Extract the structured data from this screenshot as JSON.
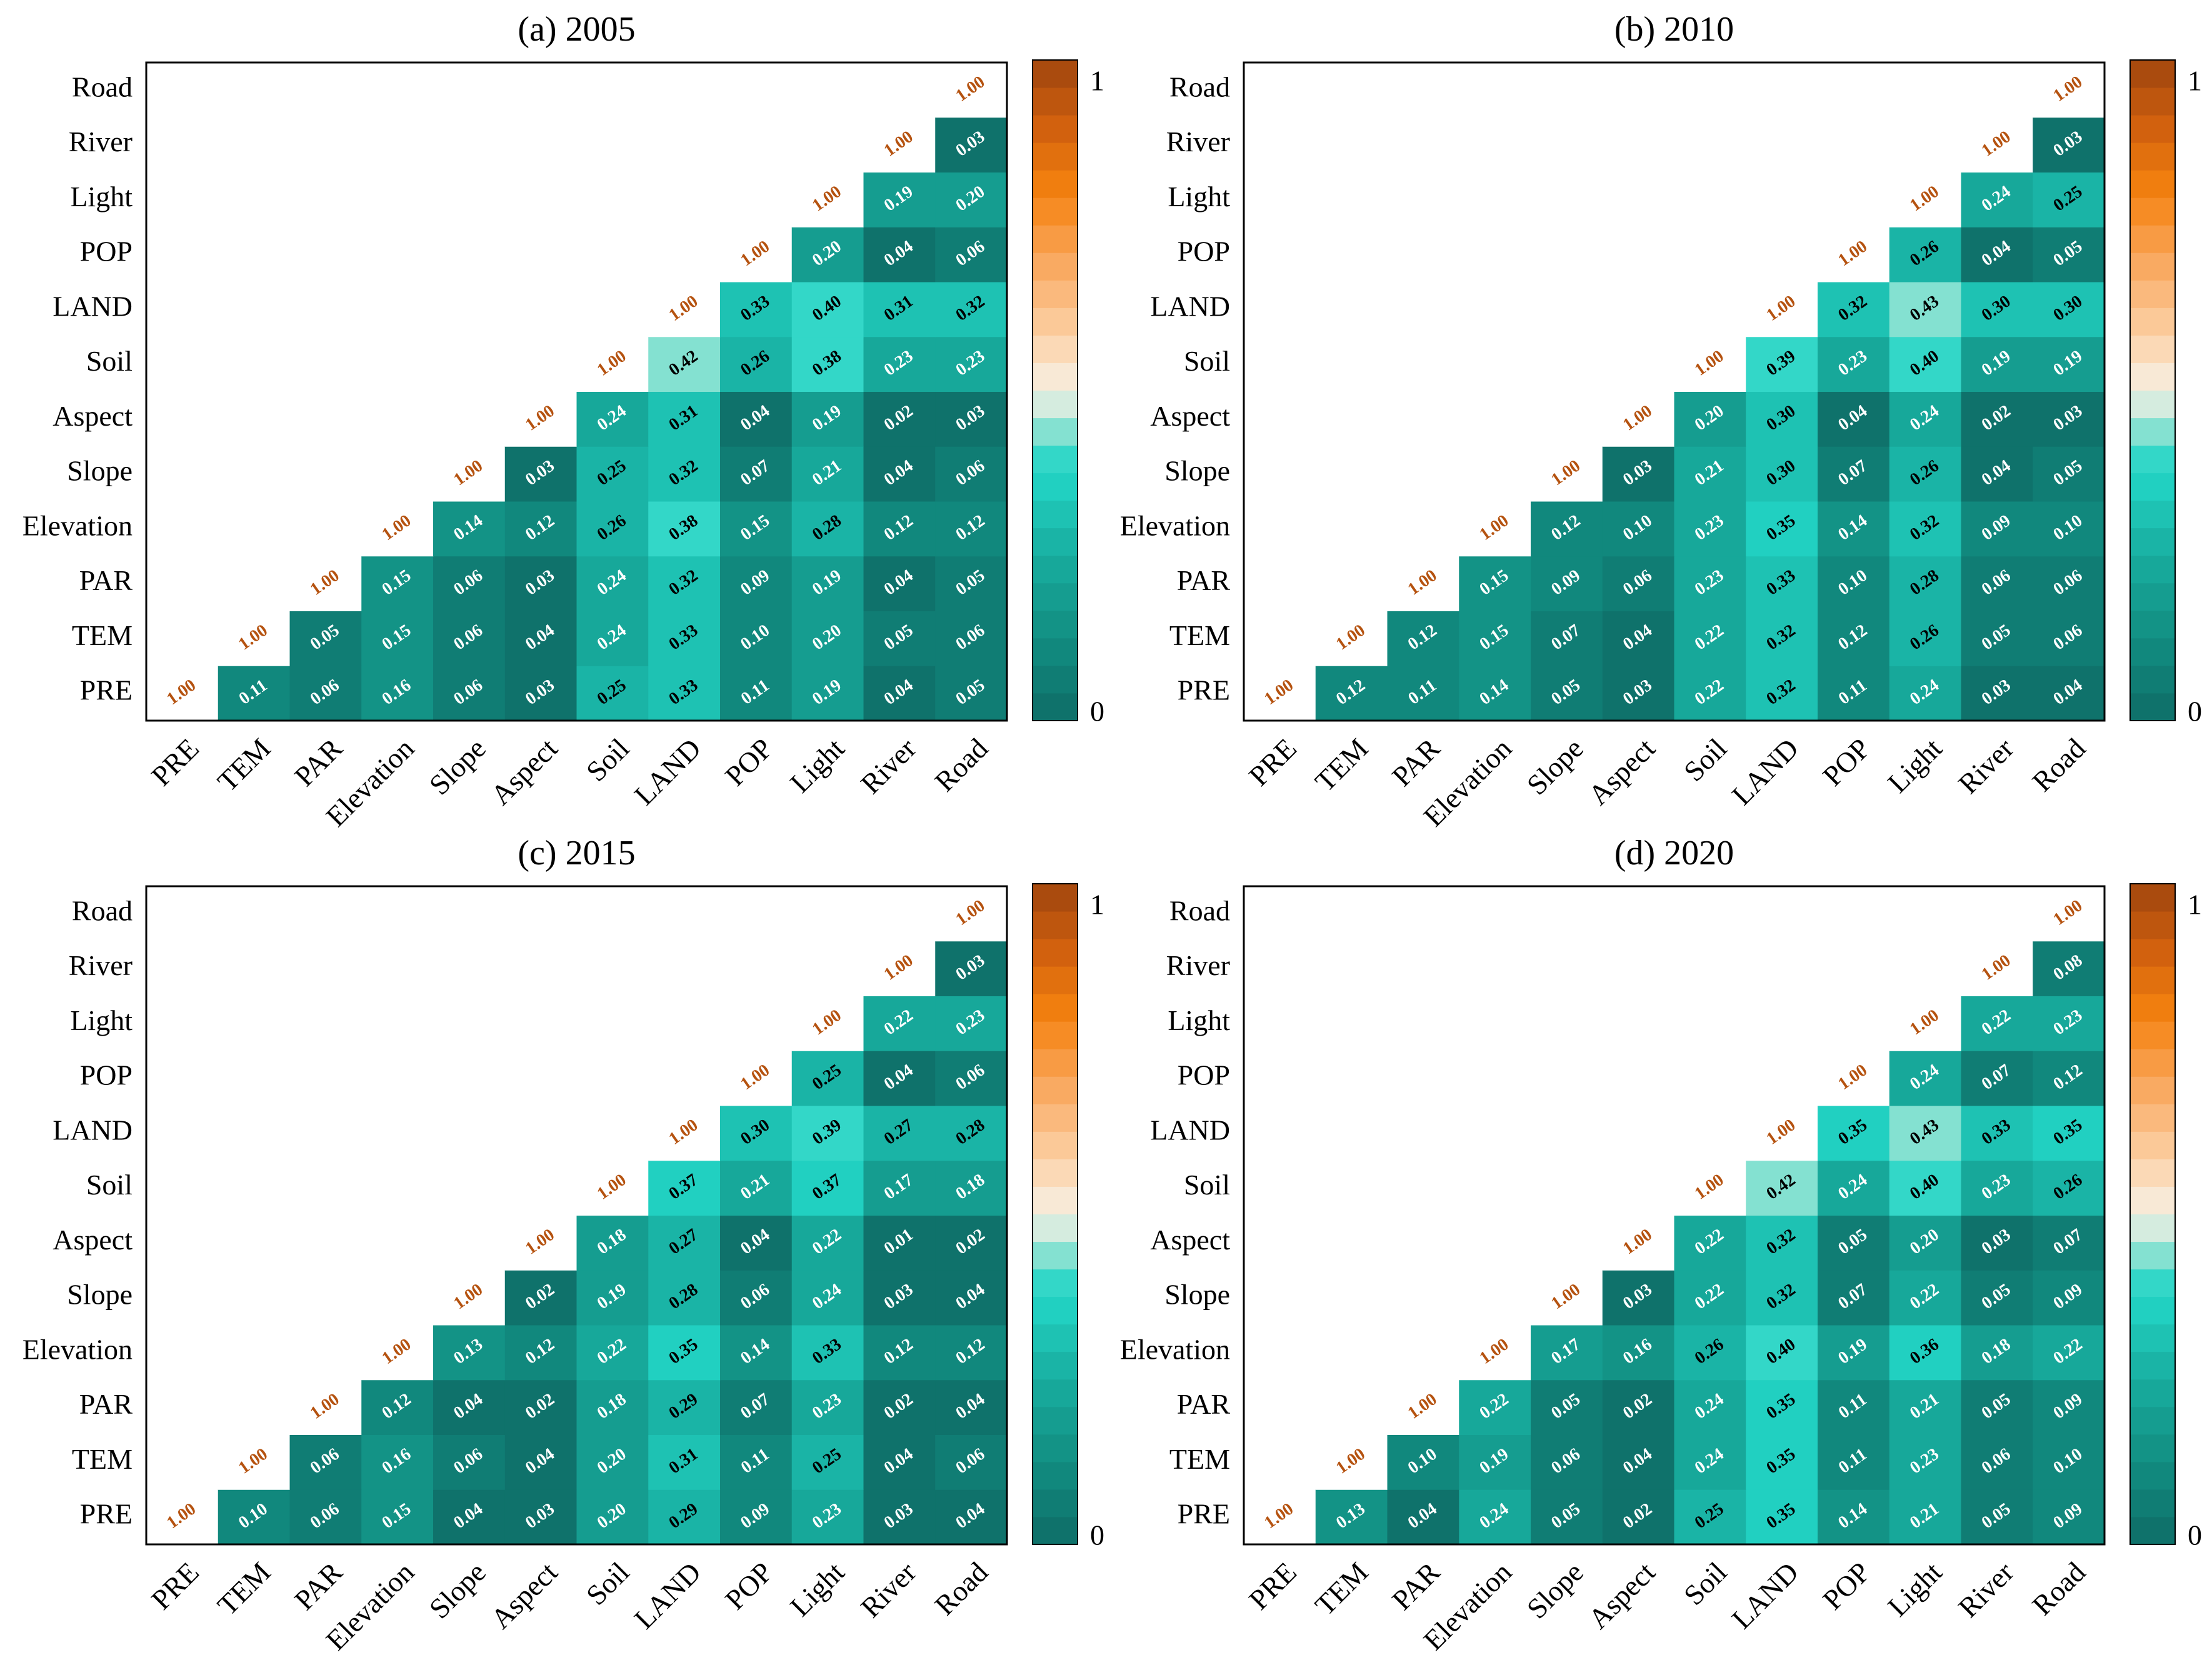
{
  "chart_data": [
    {
      "type": "heatmap",
      "title": "(a) 2005",
      "x": [
        "PRE",
        "TEM",
        "PAR",
        "Elevation",
        "Slope",
        "Aspect",
        "Soil",
        "LAND",
        "POP",
        "Light",
        "River",
        "Road"
      ],
      "y": [
        "PRE",
        "TEM",
        "PAR",
        "Elevation",
        "Slope",
        "Aspect",
        "Soil",
        "LAND",
        "POP",
        "Light",
        "River",
        "Road"
      ],
      "values": [
        [
          1,
          0.11,
          0.06,
          0.16,
          0.06,
          0.03,
          0.25,
          0.33,
          0.11,
          0.19,
          0.04,
          0.05
        ],
        [
          1,
          0.05,
          0.15,
          0.06,
          0.04,
          0.24,
          0.33,
          0.1,
          0.2,
          0.05,
          0.06
        ],
        [
          1,
          0.15,
          0.06,
          0.03,
          0.24,
          0.32,
          0.09,
          0.19,
          0.04,
          0.05
        ],
        [
          1,
          0.14,
          0.12,
          0.26,
          0.38,
          0.15,
          0.28,
          0.12,
          0.12
        ],
        [
          1,
          0.03,
          0.25,
          0.32,
          0.07,
          0.21,
          0.04,
          0.06
        ],
        [
          1,
          0.24,
          0.31,
          0.04,
          0.19,
          0.02,
          0.03
        ],
        [
          1,
          0.42,
          0.26,
          0.38,
          0.23,
          0.23
        ],
        [
          1,
          0.33,
          0.4,
          0.31,
          0.32
        ],
        [
          1,
          0.2,
          0.04,
          0.06
        ],
        [
          1,
          0.19,
          0.2
        ],
        [
          1,
          0.03
        ],
        [
          1
        ]
      ],
      "value_labels": [
        [
          "1.00",
          "0.11",
          "0.06",
          "0.16",
          "0.06",
          "0.03",
          "0.25",
          "0.33",
          "0.11",
          "0.19",
          "0.04",
          "0.05"
        ],
        [
          "1.00",
          "0.05",
          "0.15",
          "0.06",
          "0.04",
          "0.24",
          "0.33",
          "0.10",
          "0.20",
          "0.05",
          "0.06"
        ],
        [
          "1.00",
          "0.15",
          "0.06",
          "0.03",
          "0.24",
          "0.32",
          "0.09",
          "0.19",
          "0.04",
          "0.05"
        ],
        [
          "1.00",
          "0.14",
          "0.12",
          "0.26",
          "0.38",
          "0.15",
          "0.28",
          "0.12",
          "0.12"
        ],
        [
          "1.00",
          "0.03",
          "0.25",
          "0.32",
          "0.07",
          "0.21",
          "0.04",
          "0.06"
        ],
        [
          "1.00",
          "0.24",
          "0.31",
          "0.04",
          "0.19",
          "0.02",
          "0.03"
        ],
        [
          "1.00",
          "0.42",
          "0.26",
          "0.38",
          "0.23",
          "0.23"
        ],
        [
          "1.00",
          "0.33",
          "0.40",
          "0.31",
          "0.32"
        ],
        [
          "1.00",
          "0.20",
          "0.04",
          "0.06"
        ],
        [
          "1.00",
          "0.19",
          "0.20"
        ],
        [
          "1.00",
          "0.03"
        ],
        [
          "1.00"
        ]
      ],
      "zlim": [
        0,
        1
      ],
      "zticks": [
        0,
        1
      ],
      "colormap": [
        [
          0,
          "#0e6d66"
        ],
        [
          0.12,
          "#128c80"
        ],
        [
          0.25,
          "#18ad9f"
        ],
        [
          0.36,
          "#22d2c3"
        ],
        [
          0.41,
          "#3ad9ca"
        ],
        [
          0.45,
          "#a6e4d4"
        ],
        [
          0.5,
          "#f6f1e6"
        ],
        [
          0.58,
          "#fcd2a8"
        ],
        [
          0.7,
          "#f9a55a"
        ],
        [
          0.8,
          "#f5820f"
        ],
        [
          0.9,
          "#d0600e"
        ],
        [
          1,
          "#a0460e"
        ]
      ]
    },
    {
      "type": "heatmap",
      "title": "(b) 2010",
      "x": [
        "PRE",
        "TEM",
        "PAR",
        "Elevation",
        "Slope",
        "Aspect",
        "Soil",
        "LAND",
        "POP",
        "Light",
        "River",
        "Road"
      ],
      "y": [
        "PRE",
        "TEM",
        "PAR",
        "Elevation",
        "Slope",
        "Aspect",
        "Soil",
        "LAND",
        "POP",
        "Light",
        "River",
        "Road"
      ],
      "values": [
        [
          1,
          0.12,
          0.11,
          0.14,
          0.05,
          0.03,
          0.22,
          0.32,
          0.11,
          0.24,
          0.03,
          0.04
        ],
        [
          1,
          0.12,
          0.15,
          0.07,
          0.04,
          0.22,
          0.32,
          0.12,
          0.26,
          0.05,
          0.06
        ],
        [
          1,
          0.15,
          0.09,
          0.06,
          0.23,
          0.33,
          0.1,
          0.28,
          0.06,
          0.06
        ],
        [
          1,
          0.12,
          0.1,
          0.23,
          0.35,
          0.14,
          0.32,
          0.09,
          0.1
        ],
        [
          1,
          0.03,
          0.21,
          0.3,
          0.07,
          0.26,
          0.04,
          0.05
        ],
        [
          1,
          0.2,
          0.3,
          0.04,
          0.24,
          0.02,
          0.03
        ],
        [
          1,
          0.39,
          0.23,
          0.4,
          0.19,
          0.19
        ],
        [
          1,
          0.32,
          0.43,
          0.3,
          0.3
        ],
        [
          1,
          0.26,
          0.04,
          0.05
        ],
        [
          1,
          0.24,
          0.25
        ],
        [
          1,
          0.03
        ],
        [
          1
        ]
      ],
      "value_labels": [
        [
          "1.00",
          "0.12",
          "0.11",
          "0.14",
          "0.05",
          "0.03",
          "0.22",
          "0.32",
          "0.11",
          "0.24",
          "0.03",
          "0.04"
        ],
        [
          "1.00",
          "0.12",
          "0.15",
          "0.07",
          "0.04",
          "0.22",
          "0.32",
          "0.12",
          "0.26",
          "0.05",
          "0.06"
        ],
        [
          "1.00",
          "0.15",
          "0.09",
          "0.06",
          "0.23",
          "0.33",
          "0.10",
          "0.28",
          "0.06",
          "0.06"
        ],
        [
          "1.00",
          "0.12",
          "0.10",
          "0.23",
          "0.35",
          "0.14",
          "0.32",
          "0.09",
          "0.10"
        ],
        [
          "1.00",
          "0.03",
          "0.21",
          "0.30",
          "0.07",
          "0.26",
          "0.04",
          "0.05"
        ],
        [
          "1.00",
          "0.20",
          "0.30",
          "0.04",
          "0.24",
          "0.02",
          "0.03"
        ],
        [
          "1.00",
          "0.39",
          "0.23",
          "0.40",
          "0.19",
          "0.19"
        ],
        [
          "1.00",
          "0.32",
          "0.43",
          "0.30",
          "0.30"
        ],
        [
          "1.00",
          "0.26",
          "0.04",
          "0.05"
        ],
        [
          "1.00",
          "0.24",
          "0.25"
        ],
        [
          "1.00",
          "0.03"
        ],
        [
          "1.00"
        ]
      ],
      "zlim": [
        0,
        1
      ],
      "zticks": [
        0,
        1
      ],
      "colormap": [
        [
          0,
          "#0e6d66"
        ],
        [
          0.12,
          "#128c80"
        ],
        [
          0.25,
          "#18ad9f"
        ],
        [
          0.36,
          "#22d2c3"
        ],
        [
          0.41,
          "#3ad9ca"
        ],
        [
          0.45,
          "#a6e4d4"
        ],
        [
          0.5,
          "#f6f1e6"
        ],
        [
          0.58,
          "#fcd2a8"
        ],
        [
          0.7,
          "#f9a55a"
        ],
        [
          0.8,
          "#f5820f"
        ],
        [
          0.9,
          "#d0600e"
        ],
        [
          1,
          "#a0460e"
        ]
      ]
    },
    {
      "type": "heatmap",
      "title": "(c) 2015",
      "x": [
        "PRE",
        "TEM",
        "PAR",
        "Elevation",
        "Slope",
        "Aspect",
        "Soil",
        "LAND",
        "POP",
        "Light",
        "River",
        "Road"
      ],
      "y": [
        "PRE",
        "TEM",
        "PAR",
        "Elevation",
        "Slope",
        "Aspect",
        "Soil",
        "LAND",
        "POP",
        "Light",
        "River",
        "Road"
      ],
      "values": [
        [
          1,
          0.1,
          0.06,
          0.15,
          0.04,
          0.03,
          0.2,
          0.29,
          0.09,
          0.23,
          0.03,
          0.04
        ],
        [
          1,
          0.06,
          0.16,
          0.06,
          0.04,
          0.2,
          0.31,
          0.11,
          0.25,
          0.04,
          0.06
        ],
        [
          1,
          0.12,
          0.04,
          0.02,
          0.18,
          0.29,
          0.07,
          0.23,
          0.02,
          0.04
        ],
        [
          1,
          0.13,
          0.12,
          0.22,
          0.35,
          0.14,
          0.33,
          0.12,
          0.12
        ],
        [
          1,
          0.02,
          0.19,
          0.28,
          0.06,
          0.24,
          0.03,
          0.04
        ],
        [
          1,
          0.18,
          0.27,
          0.04,
          0.22,
          0.01,
          0.02
        ],
        [
          1,
          0.37,
          0.21,
          0.37,
          0.17,
          0.18
        ],
        [
          1,
          0.3,
          0.39,
          0.27,
          0.28
        ],
        [
          1,
          0.25,
          0.04,
          0.06
        ],
        [
          1,
          0.22,
          0.23
        ],
        [
          1,
          0.03
        ],
        [
          1
        ]
      ],
      "value_labels": [
        [
          "1.00",
          "0.10",
          "0.06",
          "0.15",
          "0.04",
          "0.03",
          "0.20",
          "0.29",
          "0.09",
          "0.23",
          "0.03",
          "0.04"
        ],
        [
          "1.00",
          "0.06",
          "0.16",
          "0.06",
          "0.04",
          "0.20",
          "0.31",
          "0.11",
          "0.25",
          "0.04",
          "0.06"
        ],
        [
          "1.00",
          "0.12",
          "0.04",
          "0.02",
          "0.18",
          "0.29",
          "0.07",
          "0.23",
          "0.02",
          "0.04"
        ],
        [
          "1.00",
          "0.13",
          "0.12",
          "0.22",
          "0.35",
          "0.14",
          "0.33",
          "0.12",
          "0.12"
        ],
        [
          "1.00",
          "0.02",
          "0.19",
          "0.28",
          "0.06",
          "0.24",
          "0.03",
          "0.04"
        ],
        [
          "1.00",
          "0.18",
          "0.27",
          "0.04",
          "0.22",
          "0.01",
          "0.02"
        ],
        [
          "1.00",
          "0.37",
          "0.21",
          "0.37",
          "0.17",
          "0.18"
        ],
        [
          "1.00",
          "0.30",
          "0.39",
          "0.27",
          "0.28"
        ],
        [
          "1.00",
          "0.25",
          "0.04",
          "0.06"
        ],
        [
          "1.00",
          "0.22",
          "0.23"
        ],
        [
          "1.00",
          "0.03"
        ],
        [
          "1.00"
        ]
      ],
      "zlim": [
        0,
        1
      ],
      "zticks": [
        0,
        1
      ],
      "colormap": [
        [
          0,
          "#0e6d66"
        ],
        [
          0.12,
          "#128c80"
        ],
        [
          0.25,
          "#18ad9f"
        ],
        [
          0.36,
          "#22d2c3"
        ],
        [
          0.41,
          "#3ad9ca"
        ],
        [
          0.45,
          "#a6e4d4"
        ],
        [
          0.5,
          "#f6f1e6"
        ],
        [
          0.58,
          "#fcd2a8"
        ],
        [
          0.7,
          "#f9a55a"
        ],
        [
          0.8,
          "#f5820f"
        ],
        [
          0.9,
          "#d0600e"
        ],
        [
          1,
          "#a0460e"
        ]
      ]
    },
    {
      "type": "heatmap",
      "title": "(d) 2020",
      "x": [
        "PRE",
        "TEM",
        "PAR",
        "Elevation",
        "Slope",
        "Aspect",
        "Soil",
        "LAND",
        "POP",
        "Light",
        "River",
        "Road"
      ],
      "y": [
        "PRE",
        "TEM",
        "PAR",
        "Elevation",
        "Slope",
        "Aspect",
        "Soil",
        "LAND",
        "POP",
        "Light",
        "River",
        "Road"
      ],
      "values": [
        [
          1,
          0.13,
          0.04,
          0.24,
          0.05,
          0.02,
          0.25,
          0.35,
          0.14,
          0.21,
          0.05,
          0.09
        ],
        [
          1,
          0.1,
          0.19,
          0.06,
          0.04,
          0.24,
          0.35,
          0.11,
          0.23,
          0.06,
          0.1
        ],
        [
          1,
          0.22,
          0.05,
          0.02,
          0.24,
          0.35,
          0.11,
          0.21,
          0.05,
          0.09
        ],
        [
          1,
          0.17,
          0.16,
          0.26,
          0.4,
          0.19,
          0.36,
          0.18,
          0.22
        ],
        [
          1,
          0.03,
          0.22,
          0.32,
          0.07,
          0.22,
          0.05,
          0.09
        ],
        [
          1,
          0.22,
          0.32,
          0.05,
          0.2,
          0.03,
          0.07
        ],
        [
          1,
          0.42,
          0.24,
          0.4,
          0.23,
          0.26
        ],
        [
          1,
          0.35,
          0.43,
          0.33,
          0.35
        ],
        [
          1,
          0.24,
          0.07,
          0.12
        ],
        [
          1,
          0.22,
          0.23
        ],
        [
          1,
          0.08
        ],
        [
          1
        ]
      ],
      "value_labels": [
        [
          "1.00",
          "0.13",
          "0.04",
          "0.24",
          "0.05",
          "0.02",
          "0.25",
          "0.35",
          "0.14",
          "0.21",
          "0.05",
          "0.09"
        ],
        [
          "1.00",
          "0.10",
          "0.19",
          "0.06",
          "0.04",
          "0.24",
          "0.35",
          "0.11",
          "0.23",
          "0.06",
          "0.10"
        ],
        [
          "1.00",
          "0.22",
          "0.05",
          "0.02",
          "0.24",
          "0.35",
          "0.11",
          "0.21",
          "0.05",
          "0.09"
        ],
        [
          "1.00",
          "0.17",
          "0.16",
          "0.26",
          "0.40",
          "0.19",
          "0.36",
          "0.18",
          "0.22"
        ],
        [
          "1.00",
          "0.03",
          "0.22",
          "0.32",
          "0.07",
          "0.22",
          "0.05",
          "0.09"
        ],
        [
          "1.00",
          "0.22",
          "0.32",
          "0.05",
          "0.20",
          "0.03",
          "0.07"
        ],
        [
          "1.00",
          "0.42",
          "0.24",
          "0.40",
          "0.23",
          "0.26"
        ],
        [
          "1.00",
          "0.35",
          "0.43",
          "0.33",
          "0.35"
        ],
        [
          "1.00",
          "0.24",
          "0.07",
          "0.12"
        ],
        [
          "1.00",
          "0.22",
          "0.23"
        ],
        [
          "1.00",
          "0.08"
        ],
        [
          "1.00"
        ]
      ],
      "zlim": [
        0,
        1
      ],
      "zticks": [
        0,
        1
      ],
      "colormap": [
        [
          0,
          "#0e6d66"
        ],
        [
          0.12,
          "#128c80"
        ],
        [
          0.25,
          "#18ad9f"
        ],
        [
          0.36,
          "#22d2c3"
        ],
        [
          0.41,
          "#3ad9ca"
        ],
        [
          0.45,
          "#a6e4d4"
        ],
        [
          0.5,
          "#f6f1e6"
        ],
        [
          0.58,
          "#fcd2a8"
        ],
        [
          0.7,
          "#f9a55a"
        ],
        [
          0.8,
          "#f5820f"
        ],
        [
          0.9,
          "#d0600e"
        ],
        [
          1,
          "#a0460e"
        ]
      ]
    }
  ]
}
